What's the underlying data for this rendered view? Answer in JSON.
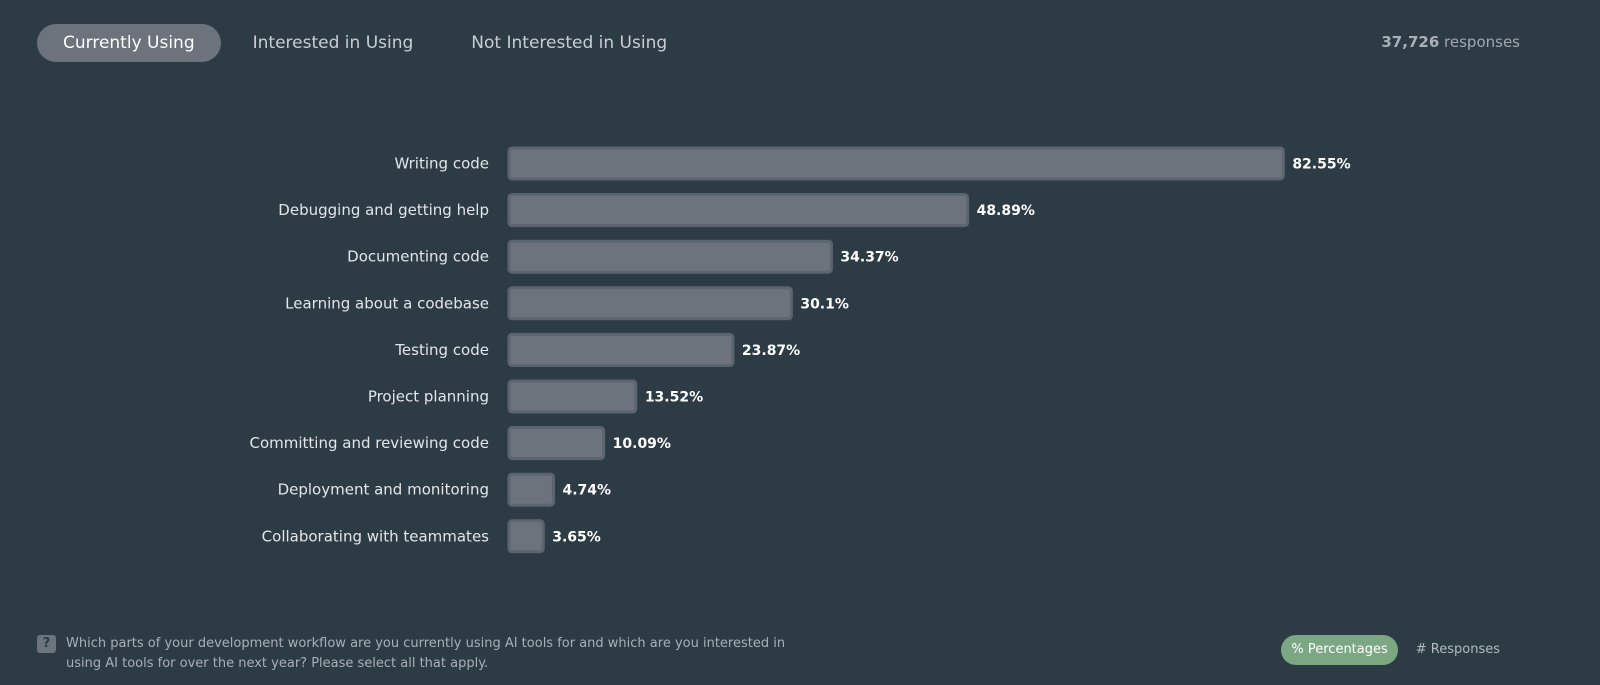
{
  "tabs": [
    {
      "label": "Currently Using",
      "active": true
    },
    {
      "label": "Interested in Using",
      "active": false
    },
    {
      "label": "Not Interested in Using",
      "active": false
    }
  ],
  "responses": {
    "count": "37,726",
    "label": "responses"
  },
  "chart_data": {
    "type": "bar",
    "orientation": "horizontal",
    "categories": [
      "Writing code",
      "Debugging and getting help",
      "Documenting code",
      "Learning about a codebase",
      "Testing code",
      "Project planning",
      "Committing and reviewing code",
      "Deployment and monitoring",
      "Collaborating with teammates"
    ],
    "values": [
      82.55,
      48.89,
      34.37,
      30.1,
      23.87,
      13.52,
      10.09,
      4.74,
      3.65
    ],
    "value_labels": [
      "82.55%",
      "48.89%",
      "34.37%",
      "30.1%",
      "23.87%",
      "13.52%",
      "10.09%",
      "4.74%",
      "3.65%"
    ],
    "xlim": [
      0,
      100
    ],
    "grid": false,
    "bar_color": "#6c737c"
  },
  "footer": {
    "question": "Which parts of your development workflow are you currently using AI tools for and which are you interested in using AI tools for over the next year? Please select all that apply.",
    "question_icon": "?",
    "toggle": {
      "percentages_label": "% Percentages",
      "responses_label": "# Responses"
    }
  },
  "colors": {
    "background": "#2d3b45",
    "bar": "#6c737c",
    "active_toggle": "#7ba882"
  }
}
